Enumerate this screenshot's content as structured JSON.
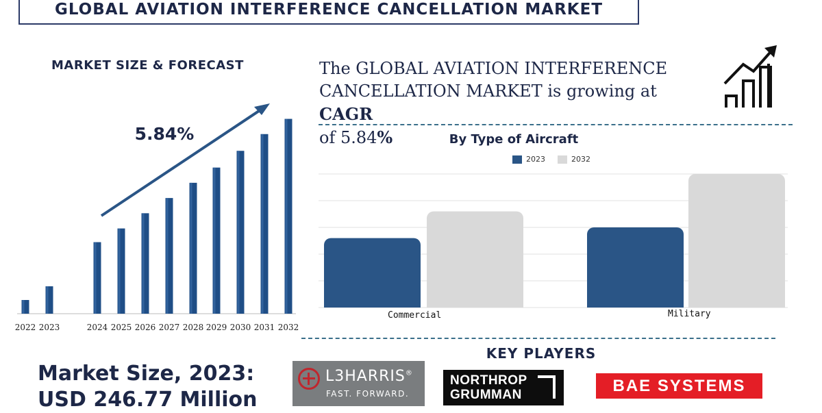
{
  "title": "GLOBAL AVIATION INTERFERENCE CANCELLATION MARKET",
  "forecast": {
    "heading": "MARKET SIZE & FORECAST",
    "cagr_label": "5.84%"
  },
  "cagr_statement": {
    "prefix": "The GLOBAL AVIATION INTERFERENCE CANCELLATION MARKET is growing at ",
    "cagr_word": "CAGR",
    "of_word": "of 5.84",
    "percent_sign": "%"
  },
  "aircraft": {
    "title": "By Type of Aircraft"
  },
  "key_players": {
    "heading": "KEY PLAYERS",
    "l3harris": {
      "name": "L3HARRIS",
      "registered": "®",
      "tagline": "FAST. FORWARD."
    },
    "northrop": {
      "line1": "NORTHROP",
      "line2": "GRUMMAN"
    },
    "bae": {
      "name": "BAE SYSTEMS"
    }
  },
  "market_size": {
    "line1": "Market Size, 2023:",
    "line2": "USD 246.77 Million"
  },
  "chart_data": [
    {
      "type": "bar",
      "title": "MARKET SIZE & FORECAST",
      "categories": [
        "2022",
        "2023",
        "2024",
        "2025",
        "2026",
        "2027",
        "2028",
        "2029",
        "2030",
        "2031",
        "2032"
      ],
      "values": [
        9,
        18,
        47,
        56,
        66,
        76,
        86,
        96,
        107,
        118,
        128
      ],
      "annotation": "5.84%",
      "ylim": [
        0,
        135
      ],
      "xlabel": "",
      "ylabel": "",
      "color": "#1f4e86"
    },
    {
      "type": "bar",
      "title": "By Type of Aircraft",
      "categories": [
        "Commercial",
        "Military"
      ],
      "series": [
        {
          "name": "2023",
          "values": [
            52,
            60
          ],
          "color": "#2a5586"
        },
        {
          "name": "2032",
          "values": [
            72,
            100
          ],
          "color": "#d9d9d9"
        }
      ],
      "ylim": [
        0,
        100
      ],
      "grid": true,
      "legend": "top-center"
    }
  ],
  "colors": {
    "navy": "#1d2747",
    "bar_blue": "#1f4e86",
    "accent_teal": "#3a6f8a",
    "bae_red": "#e41e26"
  }
}
